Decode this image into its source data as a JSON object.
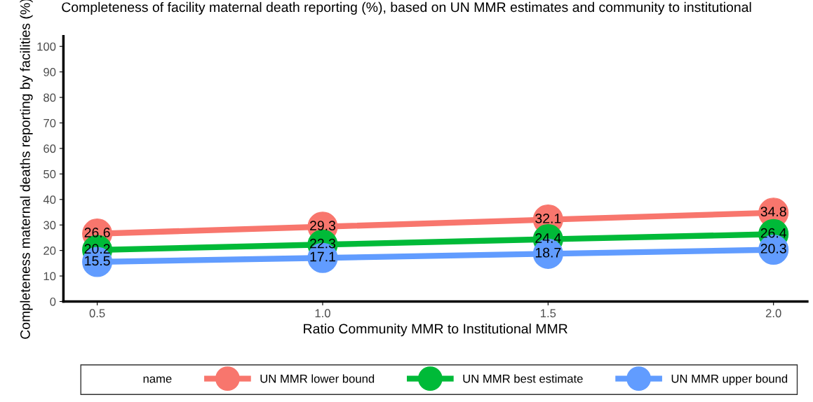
{
  "chart_data": {
    "type": "line",
    "title": "Completeness of facility maternal death reporting (%), based on UN MMR estimates and community to institutional",
    "xlabel": "Ratio Community MMR to Institutional MMR",
    "ylabel": "Completeness maternal deaths reporting by facilities (%)",
    "legend_title": "name",
    "x": [
      0.5,
      1.0,
      1.5,
      2.0
    ],
    "series": [
      {
        "name": "UN MMR lower bound",
        "color": "#f8766d",
        "values": [
          26.6,
          29.3,
          32.1,
          34.8
        ]
      },
      {
        "name": "UN MMR best estimate",
        "color": "#00ba38",
        "values": [
          20.2,
          22.3,
          24.4,
          26.4
        ]
      },
      {
        "name": "UN MMR upper bound",
        "color": "#619cff",
        "values": [
          15.5,
          17.1,
          18.7,
          20.3
        ]
      }
    ],
    "xlim": [
      0.425,
      2.075
    ],
    "xticks": [
      {
        "value": 0.5,
        "label": "0.5"
      },
      {
        "value": 1.0,
        "label": "1.0"
      },
      {
        "value": 1.5,
        "label": "1.5"
      },
      {
        "value": 2.0,
        "label": "2.0"
      }
    ],
    "ylim": [
      0,
      104
    ],
    "yticks": [
      0,
      10,
      20,
      30,
      40,
      50,
      60,
      70,
      80,
      90,
      100
    ],
    "data_labels": true,
    "marker": "circle",
    "legend": "bottom",
    "grid": false
  }
}
